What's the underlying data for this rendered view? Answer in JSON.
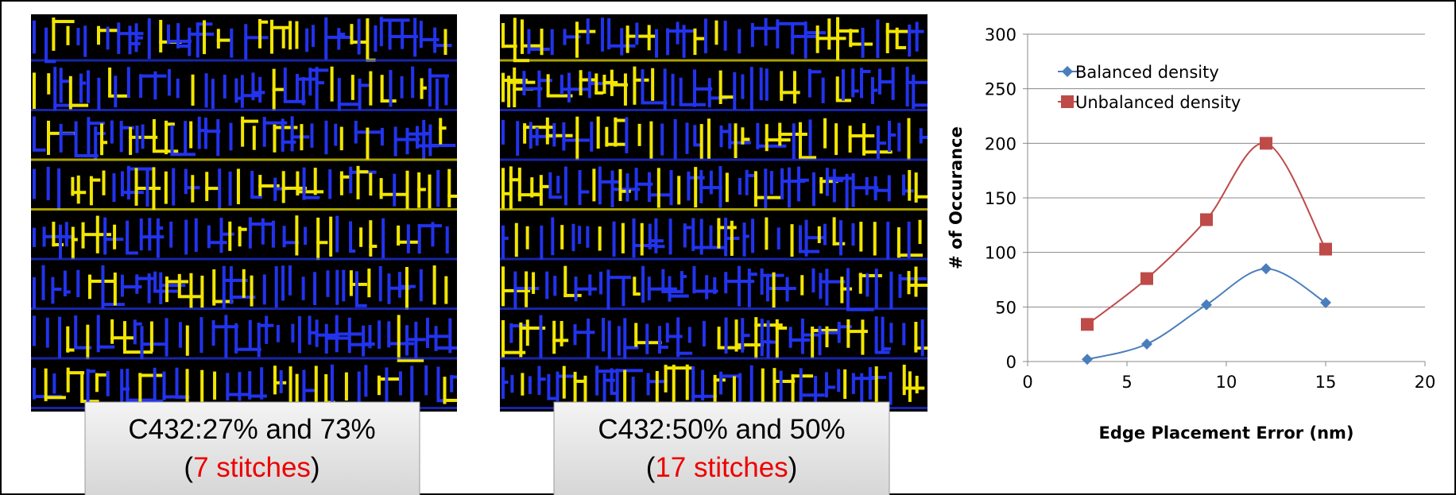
{
  "panels": [
    {
      "caption": "C432:27% and 73%",
      "open": "(",
      "highlight": "7 stitches",
      "close": ")"
    },
    {
      "caption": "C432:50% and 50%",
      "open": "(",
      "highlight": "17 stitches",
      "close": ")"
    }
  ],
  "chart_data": {
    "type": "line",
    "x_label": "Edge Placement Error (nm)",
    "y_label": "# of Occurance",
    "x": [
      3,
      6,
      9,
      12,
      15
    ],
    "series": [
      {
        "name": "Balanced density",
        "color": "#4a7ebb",
        "marker": "diamond",
        "values": [
          2,
          16,
          52,
          85,
          54
        ]
      },
      {
        "name": "Unbalanced density",
        "color": "#be4b48",
        "marker": "square",
        "values": [
          34,
          76,
          130,
          200,
          103
        ]
      }
    ],
    "xlim": [
      0,
      20
    ],
    "xticks": [
      0,
      5,
      10,
      15,
      20
    ],
    "ylim": [
      0,
      300
    ],
    "yticks": [
      0,
      50,
      100,
      150,
      200,
      250,
      300
    ],
    "grid": true,
    "smooth": true,
    "legend": "top-left"
  }
}
